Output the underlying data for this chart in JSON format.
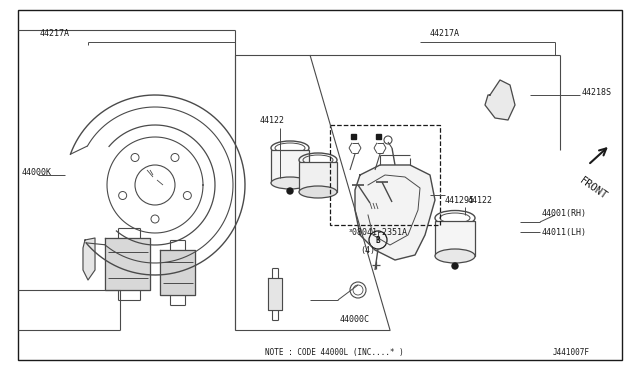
{
  "bg_color": "#ffffff",
  "border_color": "#1a1a1a",
  "line_color": "#4a4a4a",
  "diagram_id": "J441007F",
  "note_text": "NOTE : CODE 44000L (INC....* )",
  "front_label": "FRONT"
}
